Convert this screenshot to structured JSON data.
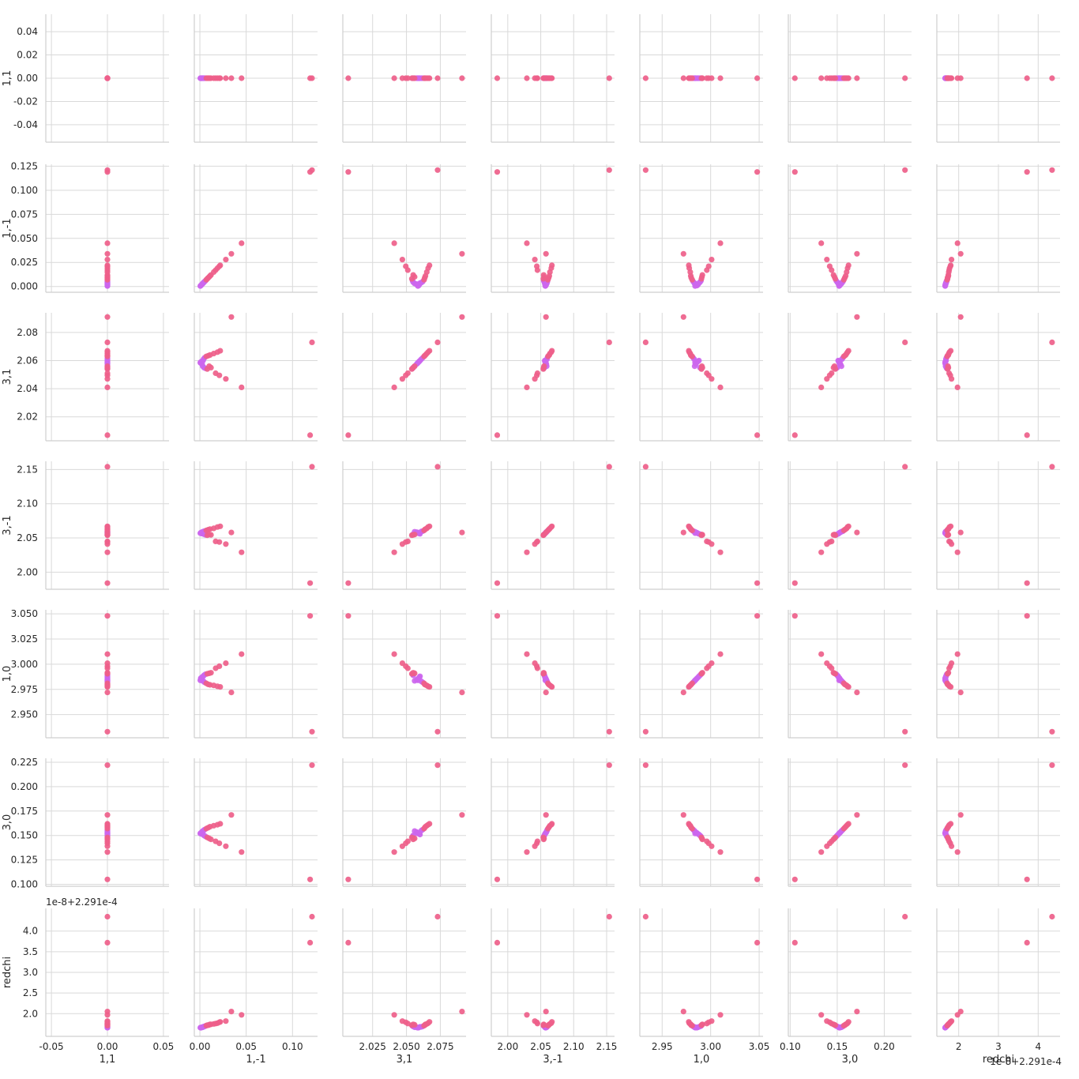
{
  "chart_data": {
    "type": "scatter",
    "kind": "pairplot",
    "variables": [
      "1,1",
      "1,-1",
      "3,1",
      "3,-1",
      "1,0",
      "3,0",
      "redchi"
    ],
    "grid": true,
    "colors": {
      "primary": "#ee5f8a",
      "secondary": "#cc66ee",
      "grid": "#d9d9d9",
      "spine": "#cfcfcf",
      "text": "#262626"
    },
    "axes": {
      "1,1": {
        "ticks": [
          -0.05,
          0.0,
          0.05
        ],
        "tick_labels": [
          "-0.05",
          "0.00",
          "0.05"
        ]
      },
      "1,-1": {
        "ticks": [
          0.0,
          0.05,
          0.1
        ],
        "tick_labels": [
          "0.00",
          "0.05",
          "0.10"
        ]
      },
      "3,1": {
        "ticks": [
          2.025,
          2.05,
          2.075
        ],
        "tick_labels": [
          "2.025",
          "2.050",
          "2.075"
        ]
      },
      "3,-1": {
        "ticks": [
          2.0,
          2.05,
          2.1,
          2.15
        ],
        "tick_labels": [
          "2.00",
          "2.05",
          "2.10",
          "2.15"
        ]
      },
      "1,0": {
        "ticks": [
          2.95,
          3.0,
          3.05
        ],
        "tick_labels": [
          "2.95",
          "3.00",
          "3.05"
        ]
      },
      "3,0": {
        "ticks": [
          0.1,
          0.15,
          0.2
        ],
        "tick_labels": [
          "0.10",
          "0.15",
          "0.20"
        ]
      },
      "redchi": {
        "ticks": [
          2,
          3,
          4
        ],
        "tick_labels": [
          "2",
          "3",
          "4"
        ]
      }
    },
    "row_axes": {
      "1,1": {
        "ticks": [
          -0.04,
          -0.02,
          0.0,
          0.02,
          0.04
        ],
        "tick_labels": [
          "-0.04",
          "-0.02",
          "0.00",
          "0.02",
          "0.04"
        ]
      },
      "1,-1": {
        "ticks": [
          0.0,
          0.025,
          0.05,
          0.075,
          0.1,
          0.125
        ],
        "tick_labels": [
          "0.000",
          "0.025",
          "0.050",
          "0.075",
          "0.100",
          "0.125"
        ]
      },
      "3,1": {
        "ticks": [
          2.02,
          2.04,
          2.06,
          2.08
        ],
        "tick_labels": [
          "2.02",
          "2.04",
          "2.06",
          "2.08"
        ]
      },
      "3,-1": {
        "ticks": [
          2.0,
          2.05,
          2.1,
          2.15
        ],
        "tick_labels": [
          "2.00",
          "2.05",
          "2.10",
          "2.15"
        ]
      },
      "1,0": {
        "ticks": [
          2.95,
          2.975,
          3.0,
          3.025,
          3.05
        ],
        "tick_labels": [
          "2.950",
          "2.975",
          "3.000",
          "3.025",
          "3.050"
        ]
      },
      "3,0": {
        "ticks": [
          0.1,
          0.125,
          0.15,
          0.175,
          0.2,
          0.225
        ],
        "tick_labels": [
          "0.100",
          "0.125",
          "0.150",
          "0.175",
          "0.200",
          "0.225"
        ]
      },
      "redchi": {
        "ticks": [
          2.0,
          2.5,
          3.0,
          3.5,
          4.0
        ],
        "tick_labels": [
          "2.0",
          "2.5",
          "3.0",
          "3.5",
          "4.0"
        ]
      }
    },
    "offset_text": "1e-8+2.291e-4",
    "points": [
      {
        "1,-1": 0.0005,
        "3,1": 2.0585,
        "3,-1": 2.057,
        "1,0": 2.984,
        "3,0": 0.152,
        "redchi": 1.66,
        "c": 1
      },
      {
        "1,-1": 0.001,
        "3,1": 2.059,
        "3,-1": 2.0575,
        "1,0": 2.986,
        "3,0": 0.1525,
        "redchi": 1.66,
        "c": 1
      },
      {
        "1,-1": 0.0015,
        "3,1": 2.058,
        "3,-1": 2.058,
        "1,0": 2.985,
        "3,0": 0.153,
        "redchi": 1.66,
        "c": 1
      },
      {
        "1,-1": 0.002,
        "3,1": 2.0595,
        "3,-1": 2.0565,
        "1,0": 2.987,
        "3,0": 0.1515,
        "redchi": 1.67,
        "c": 1
      },
      {
        "1,-1": 0.0025,
        "3,1": 2.0575,
        "3,-1": 2.0585,
        "1,0": 2.9845,
        "3,0": 0.1535,
        "redchi": 1.67,
        "c": 1
      },
      {
        "1,-1": 0.003,
        "3,1": 2.056,
        "3,-1": 2.059,
        "1,0": 2.9835,
        "3,0": 0.1545,
        "redchi": 1.67,
        "c": 1
      },
      {
        "1,-1": 0.0035,
        "3,1": 2.06,
        "3,-1": 2.056,
        "1,0": 2.988,
        "3,0": 0.151,
        "redchi": 1.68,
        "c": 1
      },
      {
        "1,-1": 0.004,
        "3,1": 2.061,
        "3,-1": 2.0595,
        "1,0": 2.983,
        "3,0": 0.155,
        "redchi": 1.68,
        "c": 1
      },
      {
        "1,-1": 0.0045,
        "3,1": 2.055,
        "3,-1": 2.0555,
        "1,0": 2.989,
        "3,0": 0.15,
        "redchi": 1.69,
        "c": 1
      },
      {
        "1,-1": 0.005,
        "3,1": 2.062,
        "3,-1": 2.06,
        "1,0": 2.982,
        "3,0": 0.156,
        "redchi": 1.69,
        "c": 1
      },
      {
        "1,-1": 0.006,
        "3,1": 2.0545,
        "3,-1": 2.0545,
        "1,0": 2.99,
        "3,0": 0.149,
        "redchi": 1.7,
        "c": 1
      },
      {
        "1,-1": 0.007,
        "3,1": 2.063,
        "3,-1": 2.061,
        "1,0": 2.981,
        "3,0": 0.157,
        "redchi": 1.71,
        "c": 0
      },
      {
        "1,-1": 0.008,
        "3,1": 2.054,
        "3,-1": 2.054,
        "1,0": 2.9905,
        "3,0": 0.148,
        "redchi": 1.72,
        "c": 0
      },
      {
        "1,-1": 0.009,
        "3,1": 2.0635,
        "3,-1": 2.062,
        "1,0": 2.98,
        "3,0": 0.158,
        "redchi": 1.72,
        "c": 0
      },
      {
        "1,-1": 0.01,
        "3,1": 2.056,
        "3,-1": 2.055,
        "1,0": 2.991,
        "3,0": 0.147,
        "redchi": 1.73,
        "c": 0
      },
      {
        "1,-1": 0.011,
        "3,1": 2.064,
        "3,-1": 2.063,
        "1,0": 2.9795,
        "3,0": 0.159,
        "redchi": 1.74,
        "c": 0
      },
      {
        "1,-1": 0.012,
        "3,1": 2.055,
        "3,-1": 2.0545,
        "1,0": 2.9915,
        "3,0": 0.146,
        "redchi": 1.74,
        "c": 0
      },
      {
        "1,-1": 0.015,
        "3,1": 2.065,
        "3,-1": 2.064,
        "1,0": 2.979,
        "3,0": 0.16,
        "redchi": 1.75,
        "c": 0
      },
      {
        "1,-1": 0.017,
        "3,1": 2.051,
        "3,-1": 2.045,
        "1,0": 2.996,
        "3,0": 0.144,
        "redchi": 1.76,
        "c": 0
      },
      {
        "1,-1": 0.019,
        "3,1": 2.066,
        "3,-1": 2.066,
        "1,0": 2.978,
        "3,0": 0.161,
        "redchi": 1.77,
        "c": 0
      },
      {
        "1,-1": 0.021,
        "3,1": 2.0495,
        "3,-1": 2.044,
        "1,0": 2.998,
        "3,0": 0.142,
        "redchi": 1.79,
        "c": 0
      },
      {
        "1,-1": 0.022,
        "3,1": 2.067,
        "3,-1": 2.067,
        "1,0": 2.9775,
        "3,0": 0.162,
        "redchi": 1.8,
        "c": 0
      },
      {
        "1,-1": 0.028,
        "3,1": 2.047,
        "3,-1": 2.041,
        "1,0": 3.001,
        "3,0": 0.139,
        "redchi": 1.82,
        "c": 0
      },
      {
        "1,-1": 0.034,
        "3,1": 2.091,
        "3,-1": 2.058,
        "1,0": 2.972,
        "3,0": 0.171,
        "redchi": 2.05,
        "c": 0
      },
      {
        "1,-1": 0.045,
        "3,1": 2.041,
        "3,-1": 2.029,
        "1,0": 3.01,
        "3,0": 0.133,
        "redchi": 1.97,
        "c": 0
      },
      {
        "1,-1": 0.119,
        "3,1": 2.007,
        "3,-1": 1.984,
        "1,0": 3.048,
        "3,0": 0.105,
        "redchi": 3.72,
        "c": 0
      },
      {
        "1,-1": 0.121,
        "3,1": 2.073,
        "3,-1": 2.154,
        "1,0": 2.933,
        "3,0": 0.222,
        "redchi": 4.35,
        "c": 0
      }
    ]
  }
}
